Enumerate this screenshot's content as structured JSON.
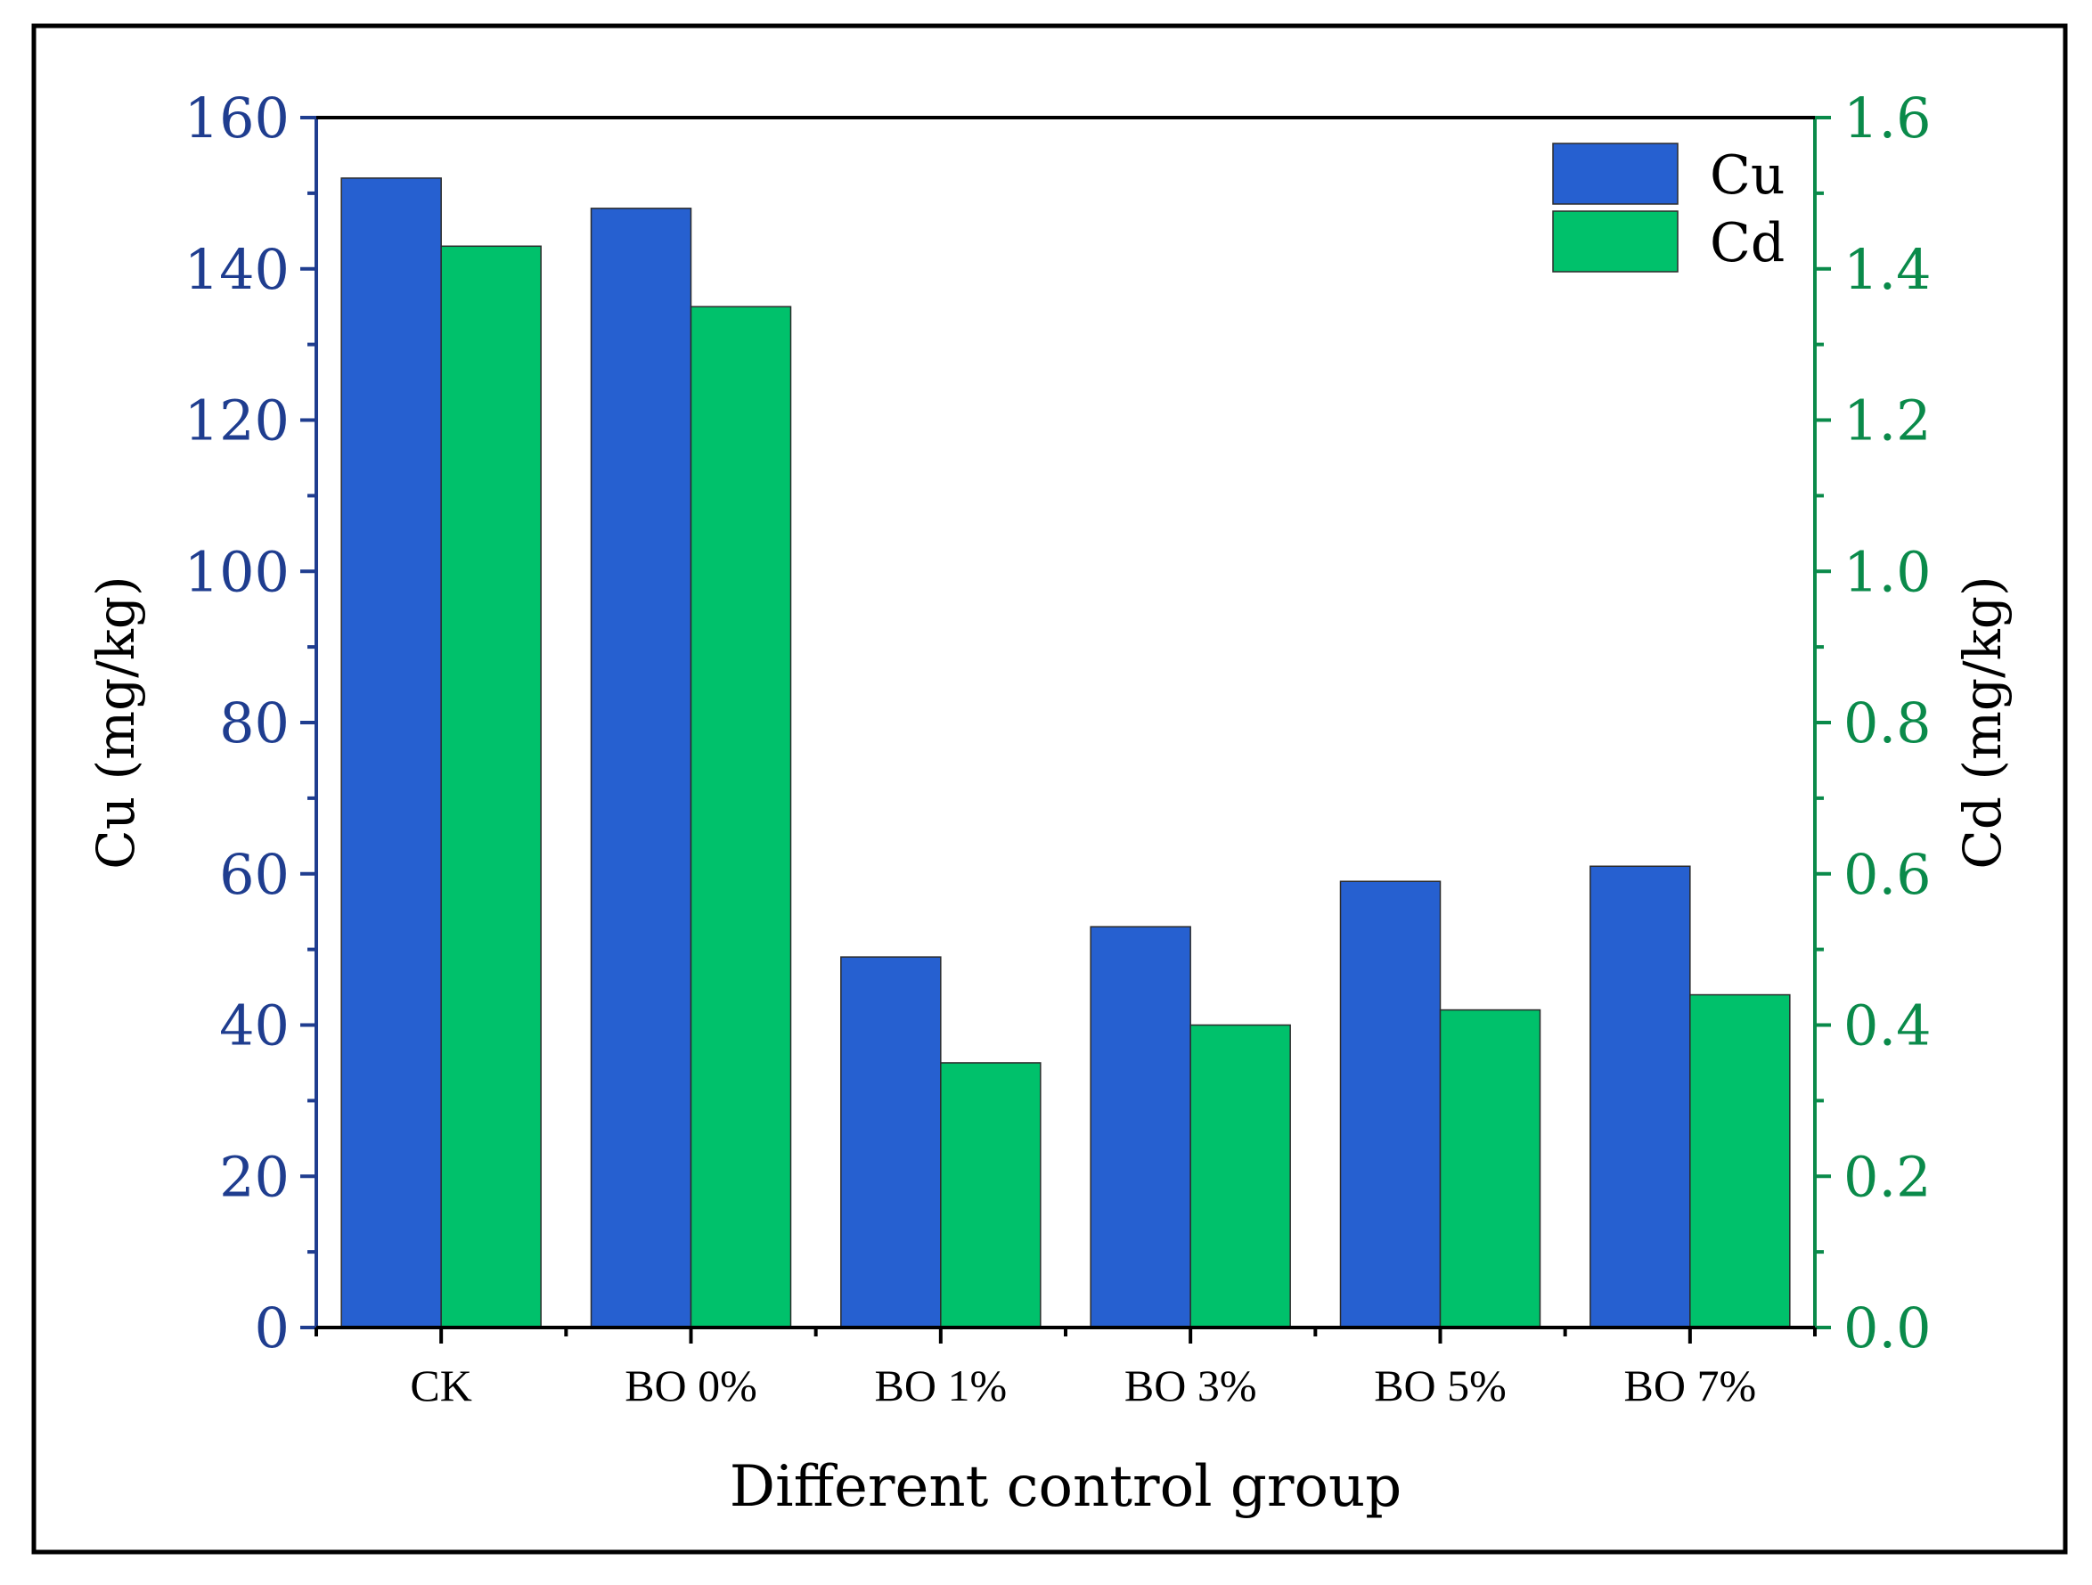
{
  "chart_data": {
    "type": "bar",
    "xlabel": "Different control group",
    "categories": [
      "CK",
      "BO 0%",
      "BO 1%",
      "BO 3%",
      "BO 5%",
      "BO 7%"
    ],
    "series": [
      {
        "name": "Cu",
        "axis": "left",
        "values": [
          152,
          148,
          49,
          53,
          59,
          61
        ]
      },
      {
        "name": "Cd",
        "axis": "right",
        "values": [
          1.43,
          1.35,
          0.35,
          0.4,
          0.42,
          0.44
        ]
      }
    ],
    "y_left": {
      "label": "Cu (mg/kg)",
      "ylim": [
        0,
        160
      ],
      "ticks": [
        "0",
        "20",
        "40",
        "60",
        "80",
        "100",
        "120",
        "140",
        "160"
      ]
    },
    "y_right": {
      "label": "Cd (mg/kg)",
      "ylim": [
        0.0,
        1.6
      ],
      "ticks": [
        "0.0",
        "0.2",
        "0.4",
        "0.6",
        "0.8",
        "1.0",
        "1.2",
        "1.4",
        "1.6"
      ]
    },
    "legend": {
      "position": "top-right",
      "entries": [
        "Cu",
        "Cd"
      ]
    },
    "grid": false,
    "colors": {
      "Cu": "#2660d0",
      "Cd": "#00c16b",
      "left_axis": "#1f3d8f",
      "right_axis": "#0a8a4a",
      "frame": "#000000"
    }
  }
}
